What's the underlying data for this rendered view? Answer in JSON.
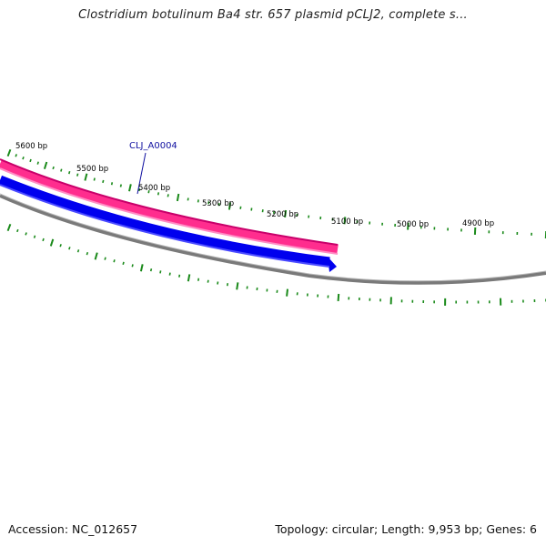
{
  "title": "Clostridium botulinum Ba4 str. 657 plasmid pCLJ2, complete s...",
  "footer": {
    "accession": "Accession: NC_012657",
    "summary": "Topology: circular; Length: 9,953 bp; Genes: 6"
  },
  "colors": {
    "forward_gene": "#ff2d8e",
    "reverse_gene": "#0000ff",
    "backbone": "#808080",
    "ticks": "#1a8a1a",
    "label": "#1010a0"
  },
  "position_labels": [
    "5600 bp",
    "5500 bp",
    "5400 bp",
    "5300 bp",
    "5200 bp",
    "5100 bp",
    "5000 bp",
    "4900 bp"
  ],
  "gene_label": "CLJ_A0004"
}
